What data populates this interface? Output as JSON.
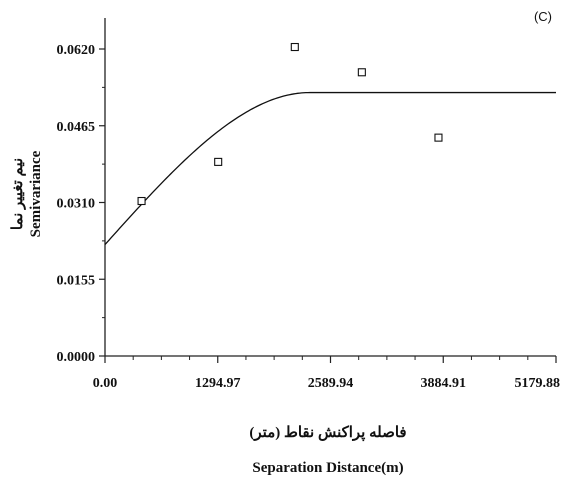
{
  "chart_data": {
    "type": "scatter",
    "panel_label": "(C)",
    "xlabel": "Separation Distance(m)",
    "xlabel_fa": "فاصله پراکنش نقاط (متر)",
    "ylabel": "Semivariance",
    "ylabel_fa": "نیم تغییر نما",
    "xlim": [
      0,
      5179.88
    ],
    "ylim": [
      0,
      0.062
    ],
    "x_ticks": [
      0,
      1294.97,
      2589.94,
      3884.91,
      5179.88
    ],
    "x_tick_labels": [
      "0.00",
      "1294.97",
      "2589.94",
      "3884.91",
      "5179.88"
    ],
    "y_ticks": [
      0,
      0.0155,
      0.031,
      0.0465,
      0.062
    ],
    "y_tick_labels": [
      "0.0000",
      "0.0155",
      "0.0310",
      "0.0465",
      "0.0620"
    ],
    "grid": false,
    "series": [
      {
        "kind": "points",
        "marker": "open-square",
        "x": [
          420,
          1300,
          2180,
          2950,
          3830
        ],
        "y": [
          0.0313,
          0.0392,
          0.0624,
          0.0573,
          0.0441
        ]
      },
      {
        "kind": "model-curve",
        "model": "spherical",
        "nugget": 0.0225,
        "sill": 0.0532,
        "range": 2350,
        "x_max": 5179.88
      }
    ]
  }
}
